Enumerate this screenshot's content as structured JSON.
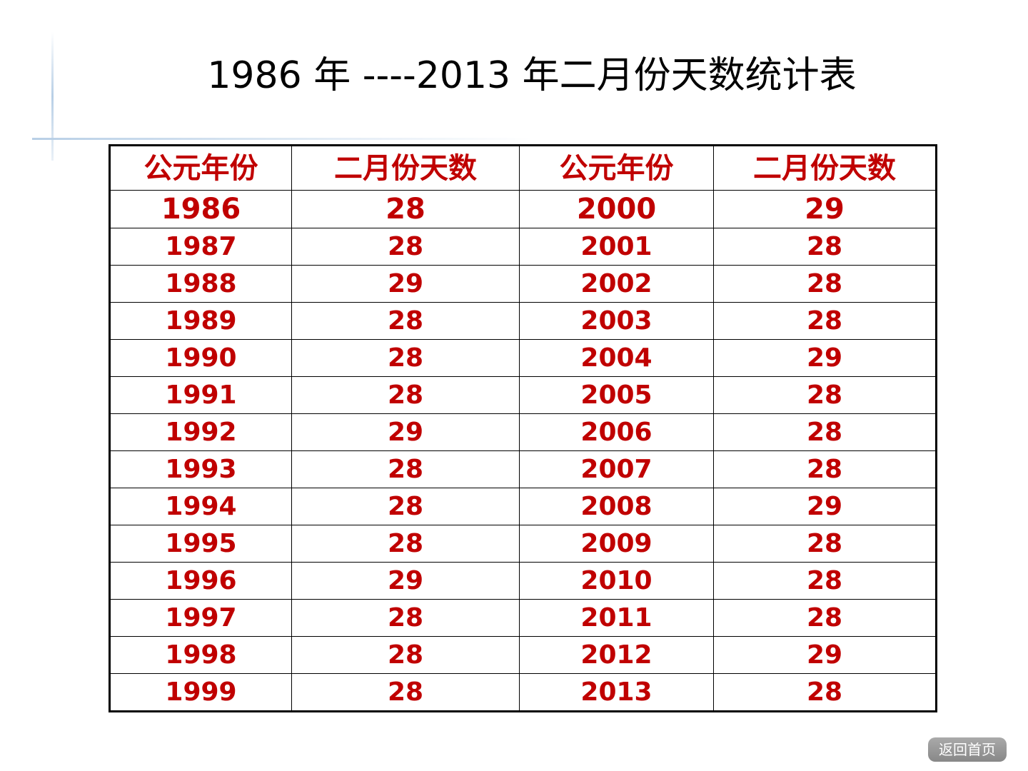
{
  "title": "1986 年 ----2013 年二月份天数统计表",
  "table": {
    "header": [
      "公元年份",
      "二月份天数",
      "公元年份",
      "二月份天数"
    ],
    "rows": [
      [
        1986,
        28,
        2000,
        29
      ],
      [
        1987,
        28,
        2001,
        28
      ],
      [
        1988,
        29,
        2002,
        28
      ],
      [
        1989,
        28,
        2003,
        28
      ],
      [
        1990,
        28,
        2004,
        29
      ],
      [
        1991,
        28,
        2005,
        28
      ],
      [
        1992,
        29,
        2006,
        28
      ],
      [
        1993,
        28,
        2007,
        28
      ],
      [
        1994,
        28,
        2008,
        29
      ],
      [
        1995,
        28,
        2009,
        28
      ],
      [
        1996,
        29,
        2010,
        28
      ],
      [
        1997,
        28,
        2011,
        28
      ],
      [
        1998,
        28,
        2012,
        29
      ],
      [
        1999,
        28,
        2013,
        28
      ]
    ]
  },
  "button": "返回首页"
}
